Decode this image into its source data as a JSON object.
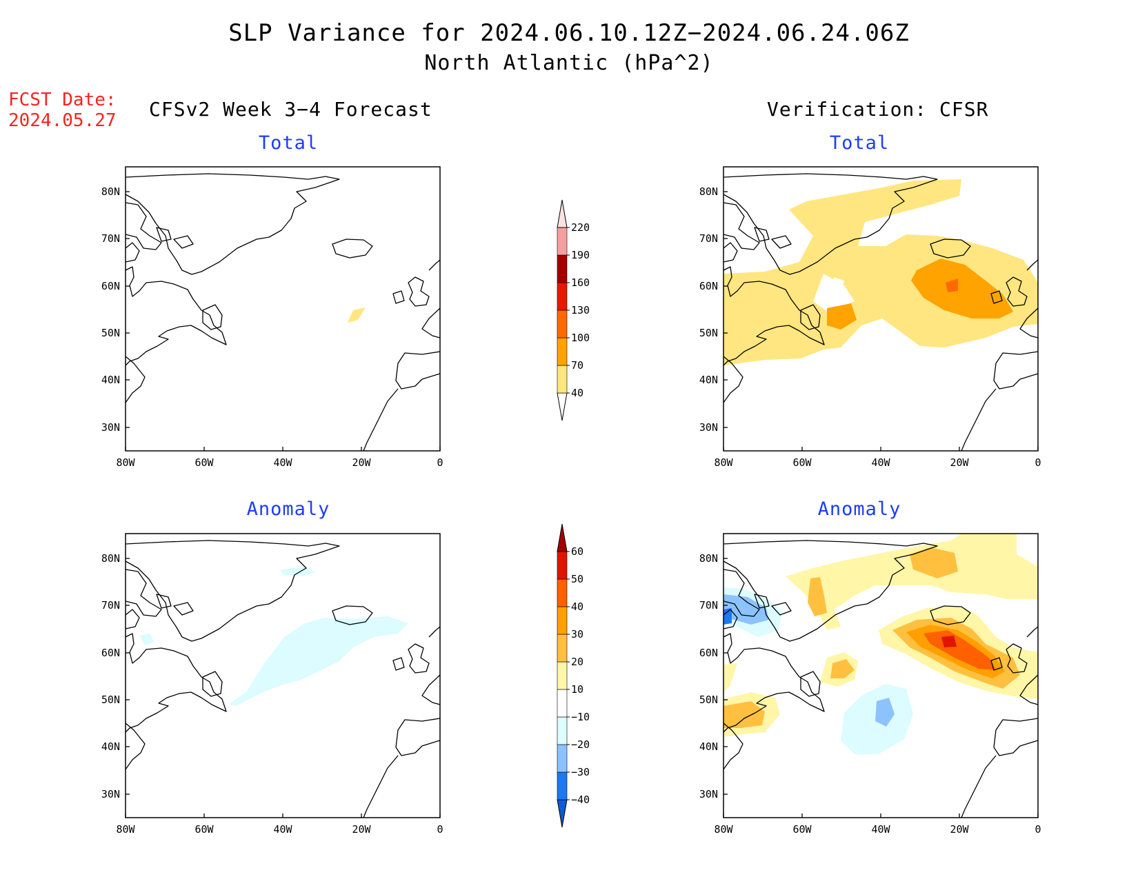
{
  "title": {
    "line1": "SLP Variance for 2024.06.10.12Z−2024.06.24.06Z",
    "line2": "North Atlantic (hPa^2)"
  },
  "fcst_date": {
    "label": "FCST Date:",
    "value": "2024.05.27"
  },
  "columns": {
    "left": "CFSv2 Week 3−4 Forecast",
    "right": "Verification: CFSR"
  },
  "panels": {
    "fc_total": "Total",
    "fc_anom": "Anomaly",
    "vf_total": "Total",
    "vf_anom": "Anomaly"
  },
  "axes": {
    "lat_ticks": [
      "80N",
      "70N",
      "60N",
      "50N",
      "40N",
      "30N"
    ],
    "lon_ticks": [
      "80W",
      "60W",
      "40W",
      "20W",
      "0"
    ]
  },
  "colorbars": {
    "total": {
      "labels": [
        "40",
        "70",
        "100",
        "130",
        "160",
        "190",
        "220"
      ],
      "colors": [
        "#ffffff",
        "#ffe680",
        "#ffa300",
        "#ff6a00",
        "#e61a00",
        "#a50000",
        "#f5a0a0",
        "#fde2e2"
      ]
    },
    "anomaly": {
      "labels": [
        "−40",
        "−30",
        "−20",
        "−10",
        "10",
        "20",
        "30",
        "40",
        "50",
        "60"
      ],
      "colors": [
        "#0f5ad2",
        "#1e78f0",
        "#8cc3ff",
        "#dcfcff",
        "#ffffff",
        "#fff6a8",
        "#ffc040",
        "#ffa000",
        "#ff6000",
        "#e01400",
        "#a50000"
      ]
    }
  },
  "legend_icons": [
    "colorbar-total",
    "colorbar-anomaly"
  ]
}
